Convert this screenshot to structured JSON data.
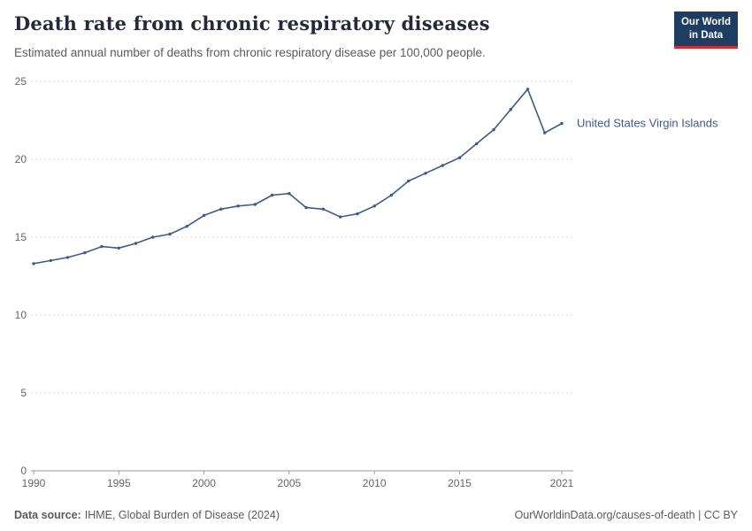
{
  "header": {
    "title": "Death rate from chronic respiratory diseases",
    "subtitle": "Estimated annual number of deaths from chronic respiratory disease per 100,000 people.",
    "logo_line1": "Our World",
    "logo_line2": "in Data"
  },
  "chart_data": {
    "type": "line",
    "title": "Death rate from chronic respiratory diseases",
    "xlabel": "",
    "ylabel": "",
    "xlim": [
      1990,
      2021
    ],
    "ylim": [
      0,
      25
    ],
    "yticks": [
      0,
      5,
      10,
      15,
      20,
      25
    ],
    "xticks": [
      1990,
      1995,
      2000,
      2005,
      2010,
      2015,
      2021
    ],
    "grid": "horizontal-dashed",
    "legend_position": "end-of-line-label",
    "series": [
      {
        "name": "United States Virgin Islands",
        "color": "#3d5a8c",
        "x": [
          1990,
          1991,
          1992,
          1993,
          1994,
          1995,
          1996,
          1997,
          1998,
          1999,
          2000,
          2001,
          2002,
          2003,
          2004,
          2005,
          2006,
          2007,
          2008,
          2009,
          2010,
          2011,
          2012,
          2013,
          2014,
          2015,
          2016,
          2017,
          2018,
          2019,
          2020,
          2021
        ],
        "values": [
          13.3,
          13.5,
          13.7,
          14.0,
          14.4,
          14.3,
          14.6,
          15.0,
          15.2,
          15.7,
          16.4,
          16.8,
          17.0,
          17.1,
          17.7,
          17.8,
          16.9,
          16.8,
          16.3,
          16.5,
          17.0,
          17.7,
          18.6,
          19.1,
          19.6,
          20.1,
          21.0,
          21.9,
          23.2,
          24.5,
          21.7,
          22.3
        ]
      }
    ],
    "colors": {
      "gridline": "#dcdcdc",
      "axis": "#9a9a9a",
      "tick_text": "#666666",
      "logo_bg": "#1d3d63",
      "logo_accent": "#d6292c"
    }
  },
  "footer": {
    "source_label": "Data source:",
    "source_text": "IHME, Global Burden of Disease (2024)",
    "credit": "OurWorldinData.org/causes-of-death | CC BY"
  }
}
